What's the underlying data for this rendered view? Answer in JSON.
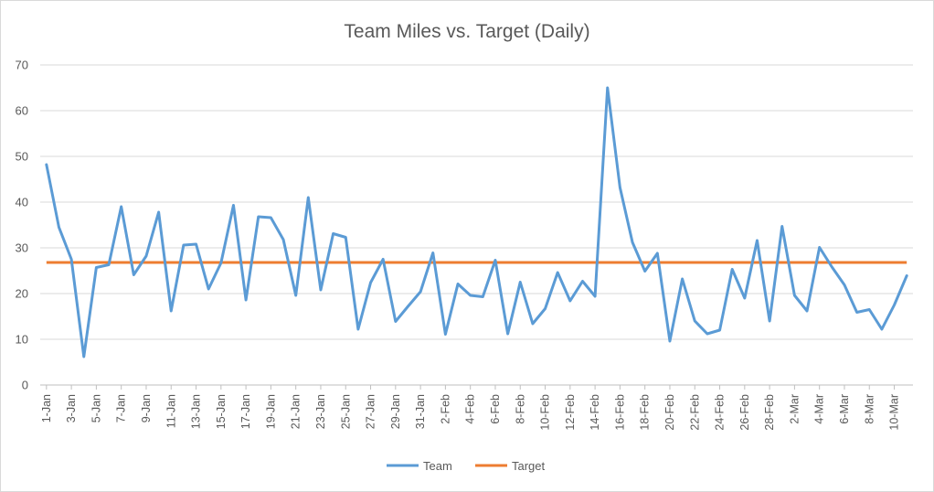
{
  "chart_data": {
    "type": "line",
    "title": "Team Miles vs. Target (Daily)",
    "xlabel": "",
    "ylabel": "",
    "ylim": [
      0,
      70
    ],
    "yticks": [
      0,
      10,
      20,
      30,
      40,
      50,
      60,
      70
    ],
    "grid": true,
    "legend": "bottom-center",
    "x_labels": [
      "1-Jan",
      "3-Jan",
      "5-Jan",
      "7-Jan",
      "9-Jan",
      "11-Jan",
      "13-Jan",
      "15-Jan",
      "17-Jan",
      "19-Jan",
      "21-Jan",
      "23-Jan",
      "25-Jan",
      "27-Jan",
      "29-Jan",
      "31-Jan",
      "2-Feb",
      "4-Feb",
      "6-Feb",
      "8-Feb",
      "10-Feb",
      "12-Feb",
      "14-Feb",
      "16-Feb",
      "18-Feb",
      "20-Feb",
      "22-Feb",
      "24-Feb",
      "26-Feb",
      "28-Feb",
      "2-Mar",
      "4-Mar",
      "6-Mar",
      "8-Mar",
      "10-Mar"
    ],
    "series": [
      {
        "name": "Team",
        "color": "#5b9bd5",
        "values": [
          48.2,
          34.5,
          27.5,
          6.2,
          25.7,
          26.3,
          39.0,
          24.1,
          28.2,
          37.8,
          16.2,
          30.6,
          30.8,
          21.0,
          26.7,
          39.3,
          18.6,
          36.8,
          36.6,
          31.8,
          19.6,
          41.0,
          20.8,
          33.1,
          32.3,
          12.2,
          22.4,
          27.5,
          13.9,
          17.2,
          20.4,
          28.9,
          11.1,
          22.1,
          19.6,
          19.3,
          27.3,
          11.2,
          22.5,
          13.4,
          16.7,
          24.6,
          18.4,
          22.7,
          19.4,
          65.0,
          43.2,
          31.2,
          24.9,
          28.8,
          9.6,
          23.2,
          14.0,
          11.2,
          12.0,
          25.3,
          19.0,
          31.6,
          14.0,
          34.7,
          19.6,
          16.2,
          30.1,
          25.8,
          21.9,
          15.9,
          16.5,
          12.2,
          17.5,
          23.9
        ]
      },
      {
        "name": "Target",
        "color": "#ed7d31",
        "constant": 26.8
      }
    ]
  }
}
